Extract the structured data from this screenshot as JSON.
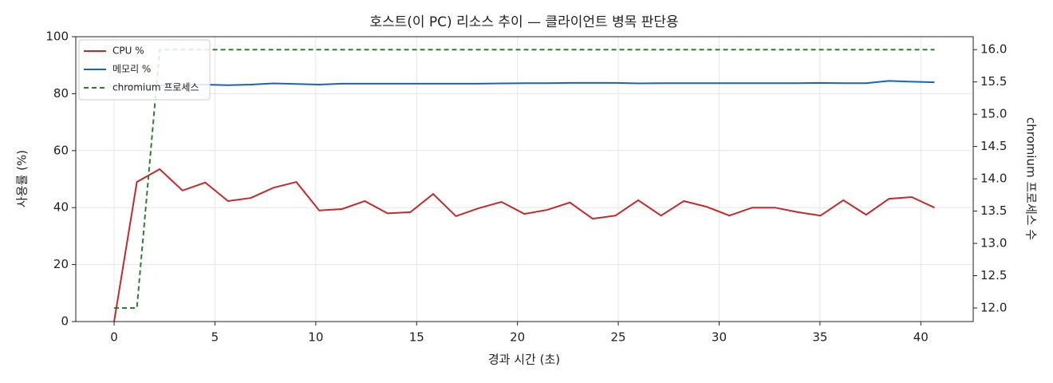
{
  "chart_data": {
    "type": "line",
    "title": "호스트(이 PC) 리소스 추이 — 클라이언트 병목 판단용",
    "xlabel": "경과 시간 (초)",
    "ylabel": "사용률 (%)",
    "y2label": "chromium 프로세스 수",
    "x": [
      0,
      1.13,
      2.26,
      3.39,
      4.52,
      5.65,
      6.78,
      7.91,
      9.04,
      10.17,
      11.3,
      12.43,
      13.56,
      14.69,
      15.82,
      16.95,
      18.08,
      19.21,
      20.34,
      21.47,
      22.6,
      23.73,
      24.86,
      25.99,
      27.12,
      28.25,
      29.38,
      30.51,
      31.64,
      32.77,
      33.9,
      35.03,
      36.16,
      37.29,
      38.42,
      39.55,
      40.68
    ],
    "series": [
      {
        "name": "CPU %",
        "color": "#c62828",
        "values": [
          0,
          49,
          53.5,
          46,
          48.8,
          42.3,
          43.4,
          47,
          49,
          39,
          39.5,
          42.3,
          38,
          38.4,
          44.8,
          37,
          39.8,
          42,
          37.8,
          39.2,
          41.8,
          36.1,
          37.2,
          42.6,
          37.2,
          42.3,
          40.3,
          37.2,
          40,
          40,
          38.4,
          37.2,
          42.6,
          37.5,
          43.1,
          43.7,
          40
        ]
      },
      {
        "name": "메모리 %",
        "color": "#1565c0",
        "values": [
          82.5,
          82.8,
          83,
          83.1,
          83.2,
          83,
          83.2,
          83.6,
          83.4,
          83.2,
          83.5,
          83.5,
          83.5,
          83.5,
          83.5,
          83.5,
          83.5,
          83.6,
          83.7,
          83.7,
          83.8,
          83.8,
          83.8,
          83.6,
          83.7,
          83.7,
          83.7,
          83.7,
          83.7,
          83.7,
          83.7,
          83.8,
          83.7,
          83.7,
          84.5,
          84.2,
          84
        ]
      },
      {
        "name": "chromium 프로세스",
        "color": "#2e7d32",
        "style": "dashed",
        "axis": "y2",
        "values": [
          12,
          12,
          16,
          16,
          16,
          16,
          16,
          16,
          16,
          16,
          16,
          16,
          16,
          16,
          16,
          16,
          16,
          16,
          16,
          16,
          16,
          16,
          16,
          16,
          16,
          16,
          16,
          16,
          16,
          16,
          16,
          16,
          16,
          16,
          16,
          16,
          16
        ]
      }
    ],
    "xlim": [
      -1.9,
      42.6
    ],
    "xticks": [
      0,
      5,
      10,
      15,
      20,
      25,
      30,
      35,
      40
    ],
    "ylim": [
      0,
      100
    ],
    "yticks": [
      0,
      20,
      40,
      60,
      80,
      100
    ],
    "y2lim": [
      11.79,
      16.2
    ],
    "y2ticks": [
      {
        "value": 12,
        "label": "12.0"
      },
      {
        "value": 12.5,
        "label": "12.5"
      },
      {
        "value": 13,
        "label": "13.0"
      },
      {
        "value": 13.5,
        "label": "13.5"
      },
      {
        "value": 14,
        "label": "14.0"
      },
      {
        "value": 14.5,
        "label": "14.5"
      },
      {
        "value": 15,
        "label": "15.0"
      },
      {
        "value": 15.5,
        "label": "15.5"
      },
      {
        "value": 16,
        "label": "16.0"
      }
    ],
    "grid": true,
    "legend": "upper-left"
  }
}
